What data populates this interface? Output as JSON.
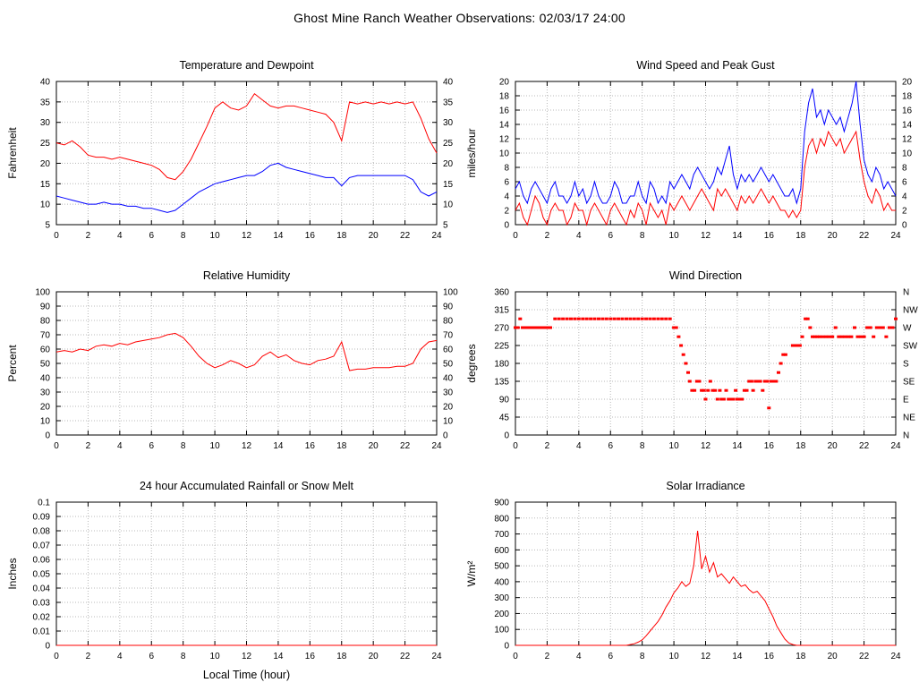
{
  "title": "Ghost Mine Ranch Weather Observations: 02/03/17 24:00",
  "colors": {
    "red": "#ff0000",
    "blue": "#0000ff",
    "grid": "#b8b8b8",
    "frame": "#000000"
  },
  "x_axis": {
    "label": "Local Time (hour)",
    "lim": [
      0,
      24
    ],
    "tick": 2
  },
  "chart_data": [
    {
      "type": "line",
      "title": "Temperature and Dewpoint",
      "ylabel": "Fahrenheit",
      "xlabel": "",
      "ylim": [
        5,
        40
      ],
      "ytick": 5,
      "y_labels_both_sides": true,
      "grid": true,
      "series": [
        {
          "name": "Temperature",
          "color": "#ff0000",
          "type": "line",
          "x_start": 0,
          "x_step": 0.5,
          "values": [
            25,
            24.5,
            25.5,
            24,
            22,
            21.5,
            21.5,
            21,
            21.5,
            21,
            20.5,
            20,
            19.5,
            18.5,
            16.5,
            16,
            18,
            21,
            25,
            29,
            33.5,
            35,
            33.5,
            33,
            34,
            37,
            35.5,
            34,
            33.5,
            34,
            34,
            33.5,
            33,
            32.5,
            32,
            30,
            25.5,
            35,
            34.5,
            35,
            34.5,
            35,
            34.5,
            35,
            34.5,
            35,
            31,
            26,
            22.5
          ]
        },
        {
          "name": "Dewpoint",
          "color": "#0000ff",
          "type": "line",
          "x_start": 0,
          "x_step": 0.5,
          "values": [
            12,
            11.5,
            11,
            10.5,
            10,
            10,
            10.5,
            10,
            10,
            9.5,
            9.5,
            9,
            9,
            8.5,
            8,
            8.5,
            10,
            11.5,
            13,
            14,
            15,
            15.5,
            16,
            16.5,
            17,
            17,
            18,
            19.5,
            20,
            19,
            18.5,
            18,
            17.5,
            17,
            16.5,
            16.5,
            14.5,
            16.5,
            17,
            17,
            17,
            17,
            17,
            17,
            17,
            16,
            13,
            12,
            13
          ]
        }
      ]
    },
    {
      "type": "line",
      "title": "Wind Speed and Peak Gust",
      "ylabel": "miles/hour",
      "xlabel": "",
      "ylim": [
        0,
        20
      ],
      "ytick": 2,
      "y_labels_both_sides": true,
      "grid": true,
      "series": [
        {
          "name": "Peak Gust",
          "color": "#0000ff",
          "type": "line",
          "x_start": 0,
          "x_step": 0.25,
          "values": [
            5,
            6,
            4,
            3,
            5,
            6,
            5,
            4,
            3,
            5,
            6,
            4,
            4,
            3,
            4,
            6,
            4,
            5,
            3,
            4,
            6,
            4,
            3,
            3,
            4,
            6,
            5,
            3,
            3,
            4,
            4,
            6,
            4,
            3,
            6,
            5,
            3,
            4,
            3,
            6,
            5,
            6,
            7,
            6,
            5,
            7,
            8,
            7,
            6,
            5,
            6,
            8,
            7,
            9,
            11,
            7,
            5,
            7,
            6,
            7,
            6,
            7,
            8,
            7,
            6,
            7,
            6,
            5,
            4,
            4,
            5,
            3,
            5,
            13,
            17,
            19,
            15,
            16,
            14,
            16,
            15,
            14,
            15,
            13,
            15,
            17,
            20,
            14,
            9,
            7,
            6,
            8,
            7,
            5,
            6,
            5,
            4
          ]
        },
        {
          "name": "Wind Speed",
          "color": "#ff0000",
          "type": "line",
          "x_start": 0,
          "x_step": 0.25,
          "values": [
            2,
            3,
            1,
            0,
            2,
            4,
            3,
            1,
            0,
            2,
            3,
            2,
            2,
            0,
            1,
            3,
            2,
            2,
            0,
            2,
            3,
            2,
            1,
            0,
            2,
            3,
            2,
            1,
            0,
            2,
            1,
            3,
            2,
            0,
            3,
            2,
            1,
            2,
            0,
            3,
            2,
            3,
            4,
            3,
            2,
            3,
            4,
            5,
            4,
            3,
            2,
            5,
            4,
            5,
            4,
            3,
            2,
            4,
            3,
            4,
            3,
            4,
            5,
            4,
            3,
            4,
            3,
            2,
            2,
            1,
            2,
            1,
            2,
            8,
            11,
            12,
            10,
            12,
            11,
            13,
            12,
            11,
            12,
            10,
            11,
            12,
            13,
            9,
            6,
            4,
            3,
            5,
            4,
            2,
            3,
            2,
            2
          ]
        }
      ]
    },
    {
      "type": "line",
      "title": "Relative Humidity",
      "ylabel": "Percent",
      "xlabel": "",
      "ylim": [
        0,
        100
      ],
      "ytick": 10,
      "y_labels_both_sides": true,
      "grid": true,
      "series": [
        {
          "name": "Relative Humidity",
          "color": "#ff0000",
          "type": "line",
          "x_start": 0,
          "x_step": 0.5,
          "values": [
            58,
            59,
            58,
            60,
            59,
            62,
            63,
            62,
            64,
            63,
            65,
            66,
            67,
            68,
            70,
            71,
            68,
            62,
            55,
            50,
            47,
            49,
            52,
            50,
            47,
            49,
            55,
            58,
            54,
            56,
            52,
            50,
            49,
            52,
            53,
            55,
            65,
            45,
            46,
            46,
            47,
            47,
            47,
            48,
            48,
            50,
            60,
            65,
            66
          ]
        }
      ]
    },
    {
      "type": "scatter",
      "title": "Wind Direction",
      "ylabel": "degrees",
      "xlabel": "",
      "ylim": [
        0,
        360
      ],
      "ytick": 45,
      "y2_labels": [
        "N",
        "NE",
        "E",
        "SE",
        "S",
        "SW",
        "W",
        "NW",
        "N"
      ],
      "grid": true,
      "series": [
        {
          "name": "Wind Direction",
          "color": "#ff0000",
          "type": "points",
          "points": [
            [
              0,
              270
            ],
            [
              0.15,
              270
            ],
            [
              0.3,
              292
            ],
            [
              0.45,
              270
            ],
            [
              0.6,
              270
            ],
            [
              0.8,
              270
            ],
            [
              1,
              270
            ],
            [
              1.2,
              270
            ],
            [
              1.4,
              270
            ],
            [
              1.6,
              270
            ],
            [
              1.8,
              270
            ],
            [
              2,
              270
            ],
            [
              2.2,
              270
            ],
            [
              2.5,
              292
            ],
            [
              2.75,
              292
            ],
            [
              3,
              292
            ],
            [
              3.25,
              292
            ],
            [
              3.5,
              292
            ],
            [
              3.75,
              292
            ],
            [
              4,
              292
            ],
            [
              4.25,
              292
            ],
            [
              4.5,
              292
            ],
            [
              4.75,
              292
            ],
            [
              5,
              292
            ],
            [
              5.25,
              292
            ],
            [
              5.5,
              292
            ],
            [
              5.75,
              292
            ],
            [
              6,
              292
            ],
            [
              6.25,
              292
            ],
            [
              6.5,
              292
            ],
            [
              6.75,
              292
            ],
            [
              7,
              292
            ],
            [
              7.25,
              292
            ],
            [
              7.5,
              292
            ],
            [
              7.75,
              292
            ],
            [
              8,
              292
            ],
            [
              8.25,
              292
            ],
            [
              8.5,
              292
            ],
            [
              8.75,
              292
            ],
            [
              9,
              292
            ],
            [
              9.25,
              292
            ],
            [
              9.5,
              292
            ],
            [
              9.75,
              292
            ],
            [
              10,
              270
            ],
            [
              10.15,
              270
            ],
            [
              10.3,
              247
            ],
            [
              10.45,
              225
            ],
            [
              10.6,
              202
            ],
            [
              10.75,
              180
            ],
            [
              10.9,
              157
            ],
            [
              11,
              135
            ],
            [
              11.15,
              112
            ],
            [
              11.3,
              112
            ],
            [
              11.45,
              135
            ],
            [
              11.6,
              135
            ],
            [
              11.75,
              112
            ],
            [
              11.9,
              112
            ],
            [
              12,
              90
            ],
            [
              12.15,
              112
            ],
            [
              12.3,
              135
            ],
            [
              12.45,
              112
            ],
            [
              12.6,
              112
            ],
            [
              12.75,
              90
            ],
            [
              12.9,
              112
            ],
            [
              13,
              90
            ],
            [
              13.15,
              90
            ],
            [
              13.3,
              112
            ],
            [
              13.45,
              90
            ],
            [
              13.6,
              90
            ],
            [
              13.75,
              90
            ],
            [
              13.9,
              112
            ],
            [
              14,
              90
            ],
            [
              14.15,
              90
            ],
            [
              14.3,
              90
            ],
            [
              14.45,
              112
            ],
            [
              14.6,
              112
            ],
            [
              14.75,
              135
            ],
            [
              14.9,
              135
            ],
            [
              15,
              112
            ],
            [
              15.15,
              135
            ],
            [
              15.3,
              135
            ],
            [
              15.45,
              135
            ],
            [
              15.6,
              112
            ],
            [
              15.75,
              135
            ],
            [
              15.9,
              135
            ],
            [
              16,
              68
            ],
            [
              16.15,
              135
            ],
            [
              16.3,
              135
            ],
            [
              16.45,
              135
            ],
            [
              16.6,
              157
            ],
            [
              16.75,
              180
            ],
            [
              16.9,
              202
            ],
            [
              17.05,
              202
            ],
            [
              17.5,
              225
            ],
            [
              17.65,
              225
            ],
            [
              17.8,
              225
            ],
            [
              17.95,
              225
            ],
            [
              18.1,
              247
            ],
            [
              18.3,
              292
            ],
            [
              18.45,
              292
            ],
            [
              18.6,
              270
            ],
            [
              18.75,
              247
            ],
            [
              18.9,
              247
            ],
            [
              19.05,
              247
            ],
            [
              19.2,
              247
            ],
            [
              19.4,
              247
            ],
            [
              19.6,
              247
            ],
            [
              19.8,
              247
            ],
            [
              20,
              247
            ],
            [
              20.2,
              270
            ],
            [
              20.4,
              247
            ],
            [
              20.6,
              247
            ],
            [
              20.8,
              247
            ],
            [
              21,
              247
            ],
            [
              21.2,
              247
            ],
            [
              21.4,
              270
            ],
            [
              21.6,
              247
            ],
            [
              21.8,
              247
            ],
            [
              22,
              247
            ],
            [
              22.2,
              270
            ],
            [
              22.4,
              270
            ],
            [
              22.6,
              247
            ],
            [
              22.8,
              270
            ],
            [
              23,
              270
            ],
            [
              23.2,
              270
            ],
            [
              23.4,
              247
            ],
            [
              23.6,
              270
            ],
            [
              23.8,
              270
            ],
            [
              24,
              292
            ]
          ]
        }
      ]
    },
    {
      "type": "line",
      "title": "24 hour Accumulated Rainfall or Snow Melt",
      "ylabel": "Inches",
      "xlabel": "Local Time (hour)",
      "ylim": [
        0,
        0.1
      ],
      "ytick": 0.01,
      "y_decimals": 2,
      "grid": true,
      "series": [
        {
          "name": "Accumulated Rainfall",
          "color": "#ff0000",
          "type": "line",
          "x_start": 0,
          "x_step": 24,
          "values": [
            0,
            0
          ]
        }
      ]
    },
    {
      "type": "line",
      "title": "Solar Irradiance",
      "ylabel": "W/m²",
      "xlabel": "",
      "ylim": [
        0,
        900
      ],
      "ytick": 100,
      "grid": true,
      "series": [
        {
          "name": "Solar Irradiance",
          "color": "#ff0000",
          "type": "line",
          "x_start": 0,
          "x_step": 0.25,
          "values": [
            0,
            0,
            0,
            0,
            0,
            0,
            0,
            0,
            0,
            0,
            0,
            0,
            0,
            0,
            0,
            0,
            0,
            0,
            0,
            0,
            0,
            0,
            0,
            0,
            0,
            0,
            0,
            0,
            0,
            5,
            10,
            20,
            35,
            60,
            90,
            120,
            150,
            190,
            240,
            280,
            330,
            360,
            400,
            370,
            390,
            500,
            720,
            480,
            560,
            460,
            520,
            430,
            450,
            420,
            390,
            430,
            400,
            370,
            380,
            350,
            330,
            340,
            310,
            280,
            230,
            180,
            120,
            80,
            40,
            15,
            5,
            0,
            0,
            0,
            0,
            0,
            0,
            0,
            0,
            0,
            0,
            0,
            0,
            0,
            0,
            0,
            0,
            0,
            0,
            0,
            0,
            0,
            0,
            0,
            0,
            0,
            0
          ]
        }
      ]
    }
  ]
}
